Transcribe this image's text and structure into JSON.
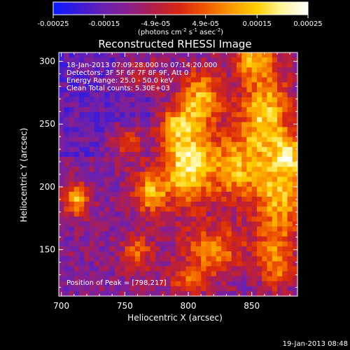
{
  "chart_data": {
    "type": "heatmap",
    "title": "Reconstructed RHESSI Image",
    "xlabel": "Heliocentric X (arcsec)",
    "ylabel": "Heliocentric Y (arcsec)",
    "xlim": [
      698,
      886
    ],
    "ylim": [
      113,
      307
    ],
    "x_ticks": [
      700,
      750,
      800,
      850
    ],
    "y_ticks": [
      150,
      200,
      250,
      300
    ],
    "colorbar": {
      "range": [
        -0.00025,
        0.00025
      ],
      "ticks": [
        -0.00025,
        -0.00015,
        -4.9e-05,
        4.9e-05,
        0.00015,
        0.00025
      ],
      "tick_labels": [
        "-0.00025",
        "-0.00015",
        "-4.9e-05",
        "4.9e-05",
        "0.00015",
        "0.00025"
      ],
      "label_main": "(photons cm",
      "label_exp1": "-2",
      "label_mid": " s",
      "label_exp2": "-1",
      "label_end": " asec",
      "label_exp3": "-2",
      "label_close": ")"
    },
    "annotations": [
      "18-Jan-2013 07:09:28.000 to 07:14:20.000",
      "Detectors: 3F 5F 6F 7F 8F 9F, Att 0",
      "Energy Range: 25.0 - 50.0 keV",
      "Clean    Total counts: 5.30E+03"
    ],
    "peak_label": "Position of Peak = [798,217]",
    "peak": [
      798,
      217
    ],
    "footer_date": "19-Jan-2013 08:48",
    "grid": false,
    "colormap": [
      "#0a1aff",
      "#3a1bd9",
      "#6a20b0",
      "#8a1f8a",
      "#b41e45",
      "#d8280f",
      "#f05a00",
      "#fb9a00",
      "#ffd000",
      "#fff6a0",
      "#ffffff"
    ],
    "sources": [
      {
        "x": 800,
        "y": 218,
        "sx": 14,
        "sy": 22,
        "a": 1.0
      },
      {
        "x": 810,
        "y": 270,
        "sx": 12,
        "sy": 16,
        "a": 0.75
      },
      {
        "x": 860,
        "y": 255,
        "sx": 14,
        "sy": 30,
        "a": 0.85
      },
      {
        "x": 872,
        "y": 190,
        "sx": 16,
        "sy": 22,
        "a": 0.7
      },
      {
        "x": 835,
        "y": 215,
        "sx": 12,
        "sy": 18,
        "a": 0.65
      },
      {
        "x": 770,
        "y": 195,
        "sx": 10,
        "sy": 12,
        "a": 0.7
      },
      {
        "x": 712,
        "y": 190,
        "sx": 7,
        "sy": 9,
        "a": 0.75
      },
      {
        "x": 752,
        "y": 235,
        "sx": 10,
        "sy": 10,
        "a": 0.5
      },
      {
        "x": 820,
        "y": 150,
        "sx": 18,
        "sy": 14,
        "a": 0.6
      },
      {
        "x": 760,
        "y": 148,
        "sx": 8,
        "sy": 10,
        "a": 0.55
      },
      {
        "x": 870,
        "y": 140,
        "sx": 10,
        "sy": 16,
        "a": 0.6
      },
      {
        "x": 790,
        "y": 250,
        "sx": 9,
        "sy": 9,
        "a": 0.55
      },
      {
        "x": 760,
        "y": 290,
        "sx": 10,
        "sy": 8,
        "a": 0.45
      },
      {
        "x": 850,
        "y": 300,
        "sx": 12,
        "sy": 8,
        "a": 0.55
      },
      {
        "x": 800,
        "y": 125,
        "sx": 12,
        "sy": 8,
        "a": 0.45
      },
      {
        "x": 880,
        "y": 225,
        "sx": 8,
        "sy": 12,
        "a": 0.65
      }
    ]
  }
}
